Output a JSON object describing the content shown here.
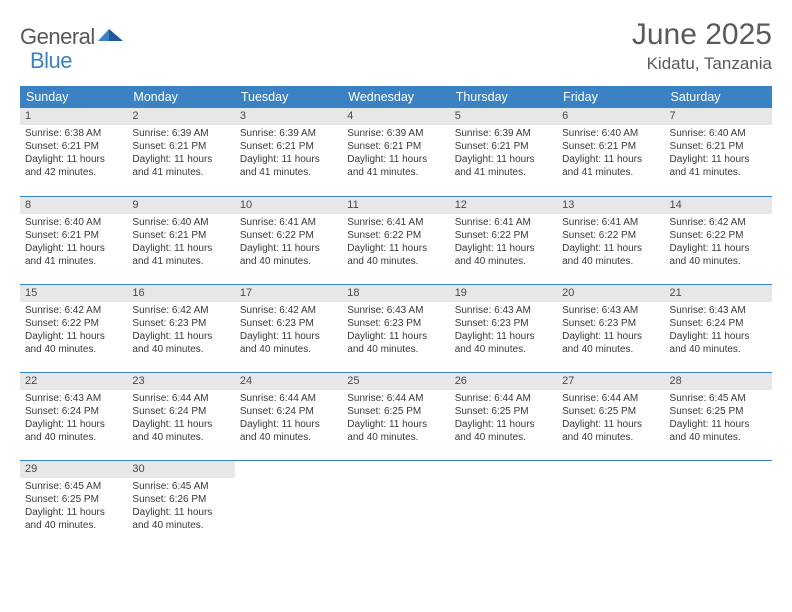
{
  "logo": {
    "word1": "General",
    "word2": "Blue"
  },
  "title": "June 2025",
  "location": "Kidatu, Tanzania",
  "colors": {
    "brand_blue": "#3b82c4",
    "header_text": "#5a5a5a",
    "daynum_bg": "#e7e7e7",
    "body_text": "#3a3a3a",
    "white": "#ffffff"
  },
  "weekdays": [
    "Sunday",
    "Monday",
    "Tuesday",
    "Wednesday",
    "Thursday",
    "Friday",
    "Saturday"
  ],
  "weeks": [
    [
      {
        "n": "1",
        "sr": "6:38 AM",
        "ss": "6:21 PM",
        "dl": "11 hours and 42 minutes."
      },
      {
        "n": "2",
        "sr": "6:39 AM",
        "ss": "6:21 PM",
        "dl": "11 hours and 41 minutes."
      },
      {
        "n": "3",
        "sr": "6:39 AM",
        "ss": "6:21 PM",
        "dl": "11 hours and 41 minutes."
      },
      {
        "n": "4",
        "sr": "6:39 AM",
        "ss": "6:21 PM",
        "dl": "11 hours and 41 minutes."
      },
      {
        "n": "5",
        "sr": "6:39 AM",
        "ss": "6:21 PM",
        "dl": "11 hours and 41 minutes."
      },
      {
        "n": "6",
        "sr": "6:40 AM",
        "ss": "6:21 PM",
        "dl": "11 hours and 41 minutes."
      },
      {
        "n": "7",
        "sr": "6:40 AM",
        "ss": "6:21 PM",
        "dl": "11 hours and 41 minutes."
      }
    ],
    [
      {
        "n": "8",
        "sr": "6:40 AM",
        "ss": "6:21 PM",
        "dl": "11 hours and 41 minutes."
      },
      {
        "n": "9",
        "sr": "6:40 AM",
        "ss": "6:21 PM",
        "dl": "11 hours and 41 minutes."
      },
      {
        "n": "10",
        "sr": "6:41 AM",
        "ss": "6:22 PM",
        "dl": "11 hours and 40 minutes."
      },
      {
        "n": "11",
        "sr": "6:41 AM",
        "ss": "6:22 PM",
        "dl": "11 hours and 40 minutes."
      },
      {
        "n": "12",
        "sr": "6:41 AM",
        "ss": "6:22 PM",
        "dl": "11 hours and 40 minutes."
      },
      {
        "n": "13",
        "sr": "6:41 AM",
        "ss": "6:22 PM",
        "dl": "11 hours and 40 minutes."
      },
      {
        "n": "14",
        "sr": "6:42 AM",
        "ss": "6:22 PM",
        "dl": "11 hours and 40 minutes."
      }
    ],
    [
      {
        "n": "15",
        "sr": "6:42 AM",
        "ss": "6:22 PM",
        "dl": "11 hours and 40 minutes."
      },
      {
        "n": "16",
        "sr": "6:42 AM",
        "ss": "6:23 PM",
        "dl": "11 hours and 40 minutes."
      },
      {
        "n": "17",
        "sr": "6:42 AM",
        "ss": "6:23 PM",
        "dl": "11 hours and 40 minutes."
      },
      {
        "n": "18",
        "sr": "6:43 AM",
        "ss": "6:23 PM",
        "dl": "11 hours and 40 minutes."
      },
      {
        "n": "19",
        "sr": "6:43 AM",
        "ss": "6:23 PM",
        "dl": "11 hours and 40 minutes."
      },
      {
        "n": "20",
        "sr": "6:43 AM",
        "ss": "6:23 PM",
        "dl": "11 hours and 40 minutes."
      },
      {
        "n": "21",
        "sr": "6:43 AM",
        "ss": "6:24 PM",
        "dl": "11 hours and 40 minutes."
      }
    ],
    [
      {
        "n": "22",
        "sr": "6:43 AM",
        "ss": "6:24 PM",
        "dl": "11 hours and 40 minutes."
      },
      {
        "n": "23",
        "sr": "6:44 AM",
        "ss": "6:24 PM",
        "dl": "11 hours and 40 minutes."
      },
      {
        "n": "24",
        "sr": "6:44 AM",
        "ss": "6:24 PM",
        "dl": "11 hours and 40 minutes."
      },
      {
        "n": "25",
        "sr": "6:44 AM",
        "ss": "6:25 PM",
        "dl": "11 hours and 40 minutes."
      },
      {
        "n": "26",
        "sr": "6:44 AM",
        "ss": "6:25 PM",
        "dl": "11 hours and 40 minutes."
      },
      {
        "n": "27",
        "sr": "6:44 AM",
        "ss": "6:25 PM",
        "dl": "11 hours and 40 minutes."
      },
      {
        "n": "28",
        "sr": "6:45 AM",
        "ss": "6:25 PM",
        "dl": "11 hours and 40 minutes."
      }
    ],
    [
      {
        "n": "29",
        "sr": "6:45 AM",
        "ss": "6:25 PM",
        "dl": "11 hours and 40 minutes."
      },
      {
        "n": "30",
        "sr": "6:45 AM",
        "ss": "6:26 PM",
        "dl": "11 hours and 40 minutes."
      },
      null,
      null,
      null,
      null,
      null
    ]
  ],
  "labels": {
    "sunrise": "Sunrise:",
    "sunset": "Sunset:",
    "daylight": "Daylight:"
  }
}
